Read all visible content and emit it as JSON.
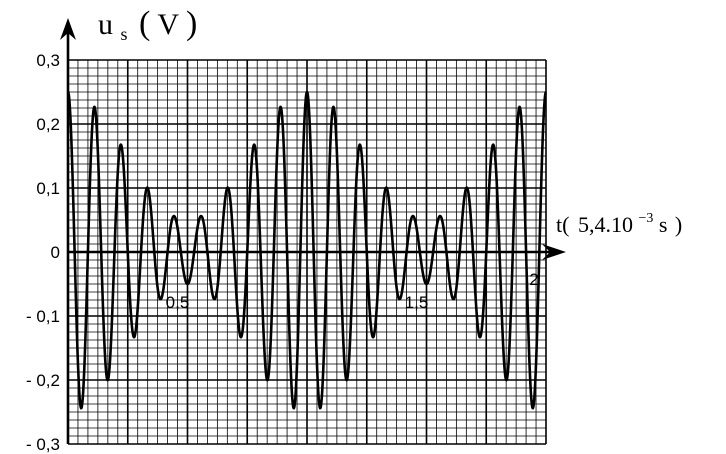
{
  "chart_data": {
    "type": "line",
    "title": "",
    "ylabel": {
      "symbol": "u",
      "subscript": "s",
      "open": "(",
      "unit": "V",
      "close": ")"
    },
    "xlabel": {
      "prefix": "t(",
      "mantissa": "5,4.10",
      "exponent": "−3",
      "unit": " s",
      "suffix": ")"
    },
    "xlim": [
      0,
      2
    ],
    "ylim": [
      -0.3,
      0.3
    ],
    "grid": true,
    "y_ticks": [
      {
        "value": 0.3,
        "label": "0,3"
      },
      {
        "value": 0.2,
        "label": "0,2"
      },
      {
        "value": 0.1,
        "label": "0,1"
      },
      {
        "value": 0,
        "label": "0"
      },
      {
        "value": -0.1,
        "label": "- 0,1"
      },
      {
        "value": -0.2,
        "label": "- 0,2"
      },
      {
        "value": -0.3,
        "label": "- 0,3"
      }
    ],
    "x_ticks": [
      {
        "value": 0.5,
        "label": "0,5"
      },
      {
        "value": 1.5,
        "label": "1,5"
      },
      {
        "value": 2,
        "label": "2"
      }
    ],
    "series": [
      {
        "waveform": "amplitude-modulated sine",
        "carrier_cycles_per_unit": 9,
        "envelope_period": 1,
        "amplitude_max": 0.25,
        "amplitude_min": 0.05,
        "color": "#000000"
      }
    ]
  }
}
